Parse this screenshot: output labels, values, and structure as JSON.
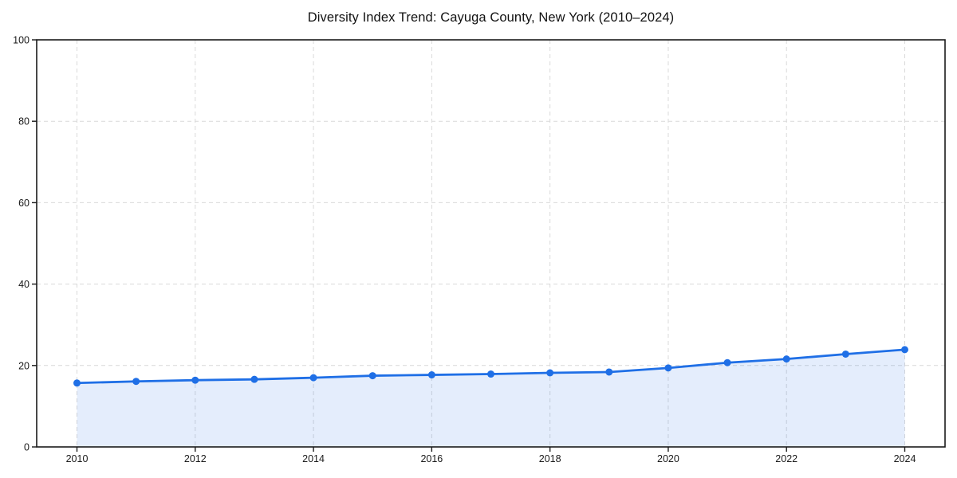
{
  "chart_data": {
    "type": "line",
    "title": "Diversity Index Trend: Cayuga County, New York (2010–2024)",
    "x": [
      2010,
      2011,
      2012,
      2013,
      2014,
      2015,
      2016,
      2017,
      2018,
      2019,
      2020,
      2021,
      2022,
      2023,
      2024
    ],
    "series": [
      {
        "name": "Diversity Index",
        "values": [
          15.7,
          16.1,
          16.4,
          16.6,
          17.0,
          17.5,
          17.7,
          17.9,
          18.2,
          18.4,
          19.4,
          20.7,
          21.6,
          22.8,
          23.9
        ]
      }
    ],
    "xlabel": "",
    "ylabel": "",
    "ylim": [
      0,
      100
    ],
    "yticks": [
      0,
      20,
      40,
      60,
      80,
      100
    ],
    "xticks": [
      2010,
      2012,
      2014,
      2016,
      2018,
      2020,
      2022,
      2024
    ],
    "grid": "dashed, both axes, ticks only",
    "legend": "none",
    "marker": "circle",
    "area_fill": true,
    "colors": {
      "line": "#1f6fe6",
      "marker": "#1f6fe6",
      "area": "#1f6fe6",
      "area_opacity": "0.12",
      "grid": "#d9d9d9",
      "spine": "#1a1a1a",
      "tick_label": "#1a1a1a",
      "title": "#111111",
      "background": "#ffffff"
    }
  }
}
